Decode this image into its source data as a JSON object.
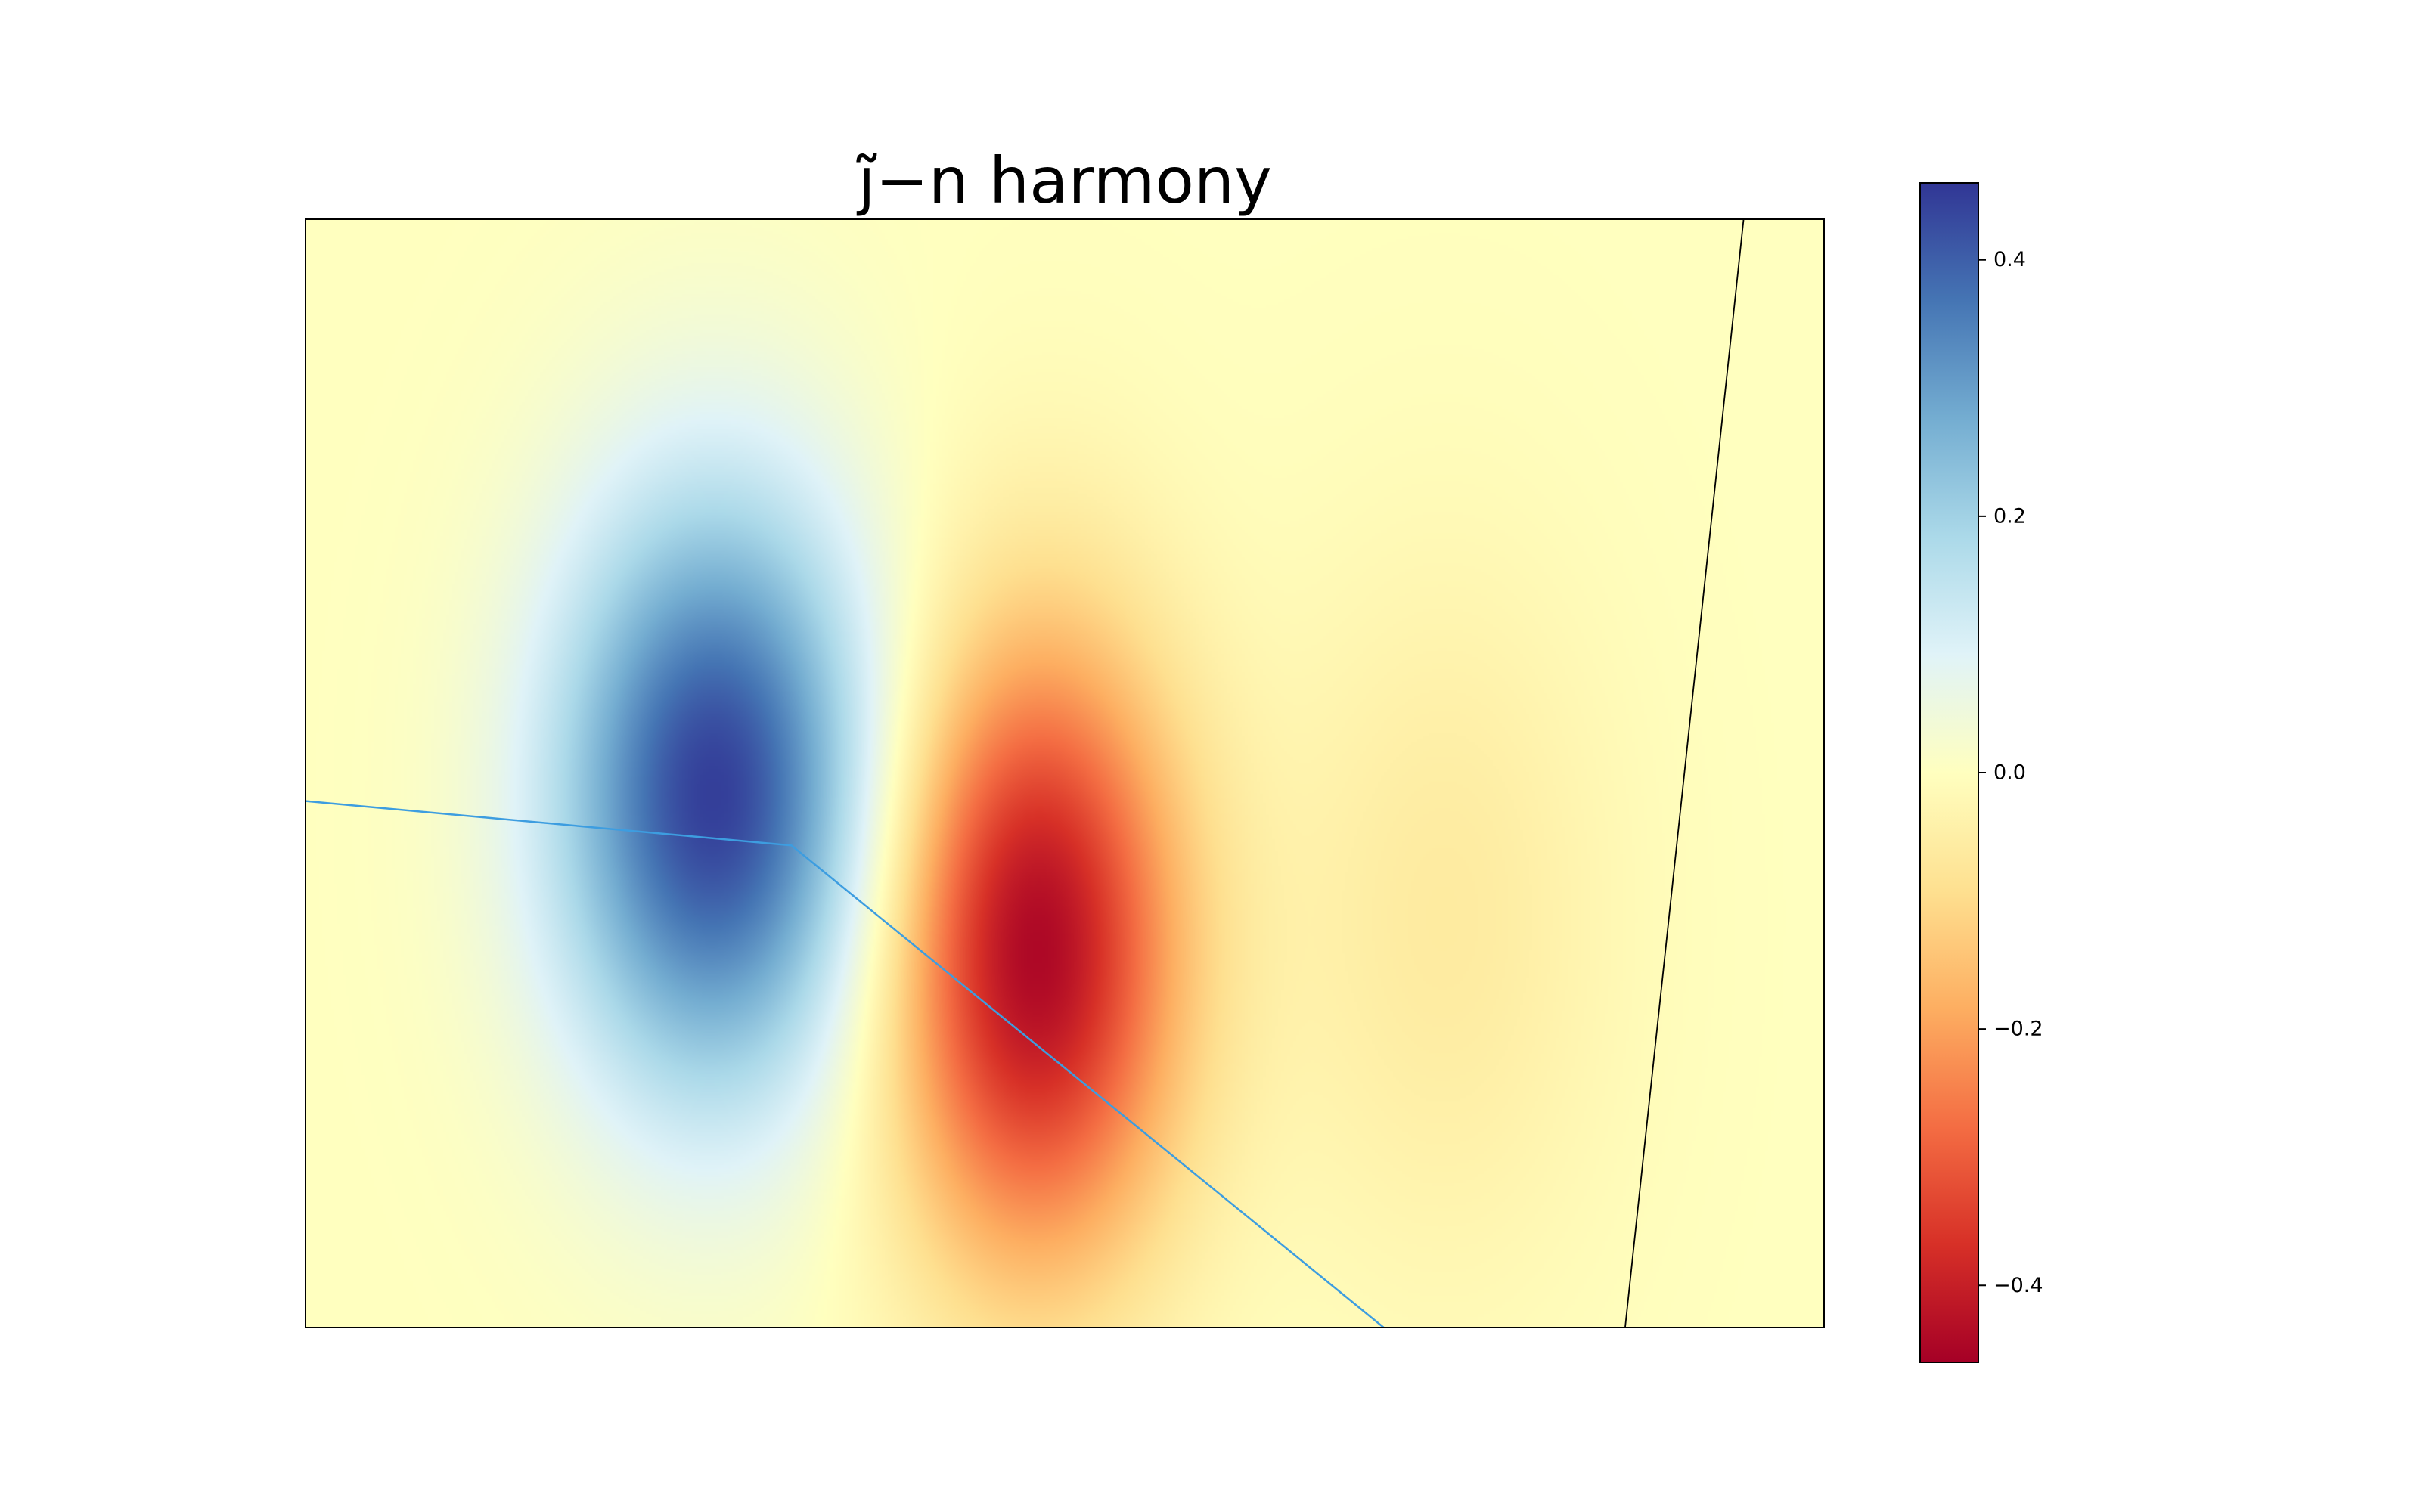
{
  "chart_data": {
    "type": "heatmap",
    "title": "j̃−n harmony",
    "xlabel": "",
    "ylabel": "",
    "x_ticks": [],
    "y_ticks": [],
    "colormap": "RdYlBu",
    "colorbar": {
      "range": [
        -0.46,
        0.46
      ],
      "ticks": [
        {
          "value": 0.4,
          "label": "0.4"
        },
        {
          "value": 0.2,
          "label": "0.2"
        },
        {
          "value": 0.0,
          "label": "0.0"
        },
        {
          "value": -0.2,
          "label": "−0.2"
        },
        {
          "value": -0.4,
          "label": "−0.4"
        }
      ]
    },
    "field_extrema": [
      {
        "name": "maximum",
        "value": 0.45,
        "x": 0.27,
        "y": 0.48
      },
      {
        "name": "minimum",
        "value": -0.45,
        "x": 0.48,
        "y": 0.34
      },
      {
        "name": "secondary minimum",
        "value": -0.06,
        "x": 0.75,
        "y": 0.37
      }
    ],
    "overlay_lines": [
      {
        "name": "blue polyline",
        "color": "#3d9de0",
        "points": [
          [
            0.0,
            0.475
          ],
          [
            0.32,
            0.435
          ],
          [
            0.71,
            0.0
          ]
        ]
      },
      {
        "name": "black line",
        "color": "#000000",
        "points": [
          [
            0.947,
            1.0
          ],
          [
            0.869,
            0.0
          ]
        ]
      }
    ]
  }
}
